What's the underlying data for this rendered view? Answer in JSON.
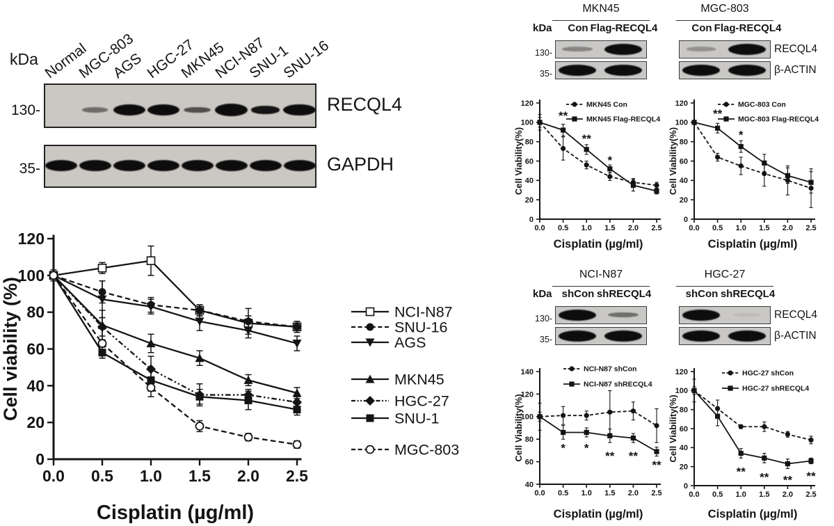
{
  "figure": {
    "background": "#ffffff",
    "ink": "#141414"
  },
  "main_blot": {
    "kda_label": "kDa",
    "lanes": [
      "Normal",
      "MGC-803",
      "AGS",
      "HGC-27",
      "MKN45",
      "NCI-N87",
      "SNU-1",
      "SNU-16"
    ],
    "rows": [
      {
        "marker": "130-",
        "label": "RECQL4",
        "intensities": [
          0,
          0.3,
          1,
          1,
          0.4,
          1.15,
          0.6,
          1.05
        ]
      },
      {
        "marker": "35-",
        "label": "GAPDH",
        "intensities": [
          1,
          1,
          1,
          1,
          1,
          1,
          1,
          1
        ]
      }
    ]
  },
  "mini_blots": [
    {
      "id": "mkn45",
      "title": "MKN45",
      "kda_label": "kDa",
      "lanes": [
        "Con",
        "Flag-RECQL4"
      ],
      "rows": [
        {
          "marker": "130-",
          "side_label": "",
          "intensities": [
            0.22,
            1
          ]
        },
        {
          "marker": "35-",
          "side_label": "",
          "intensities": [
            1,
            1
          ]
        }
      ]
    },
    {
      "id": "mgc803",
      "title": "MGC-803",
      "kda_label": "",
      "lanes": [
        "Con",
        "Flag-RECQL4"
      ],
      "rows": [
        {
          "marker": "",
          "side_label": "RECQL4",
          "intensities": [
            0.18,
            1
          ]
        },
        {
          "marker": "",
          "side_label": "β-ACTIN",
          "intensities": [
            1,
            1
          ]
        }
      ]
    },
    {
      "id": "ncin87",
      "title": "NCI-N87",
      "kda_label": "kDa",
      "lanes": [
        "shCon",
        "shRECQL4"
      ],
      "rows": [
        {
          "marker": "130-",
          "side_label": "",
          "intensities": [
            1,
            0.3
          ]
        },
        {
          "marker": "35-",
          "side_label": "",
          "intensities": [
            1,
            1
          ]
        }
      ]
    },
    {
      "id": "hgc27",
      "title": "HGC-27",
      "kda_label": "",
      "lanes": [
        "shCon",
        "shRECQL4"
      ],
      "rows": [
        {
          "marker": "",
          "side_label": "RECQL4",
          "intensities": [
            1,
            0.04
          ]
        },
        {
          "marker": "",
          "side_label": "β-ACTIN",
          "intensities": [
            1,
            1
          ]
        }
      ]
    }
  ],
  "chart_data": [
    {
      "id": "main",
      "type": "line",
      "title": "",
      "xlabel": "Cisplatin (µg/ml)",
      "ylabel": "Cell viability (%)",
      "x": [
        0,
        0.5,
        1,
        1.5,
        2,
        2.5
      ],
      "xticks": [
        "0.0",
        "0.5",
        "1.0",
        "1.5",
        "2.0",
        "2.5"
      ],
      "yticks": [
        0,
        20,
        40,
        60,
        80,
        100,
        120
      ],
      "xlim": [
        0,
        2.5
      ],
      "ylim": [
        0,
        120
      ],
      "grid": false,
      "legend_position": "right-outside",
      "series": [
        {
          "name": "NCI-N87",
          "marker": "osquare",
          "line": "solid",
          "values": [
            100,
            104,
            108,
            81,
            74,
            72
          ],
          "errors": [
            3,
            3,
            8,
            3,
            4,
            3
          ]
        },
        {
          "name": "SNU-16",
          "marker": "fcircle",
          "line": "dashed",
          "values": [
            100,
            91,
            84,
            81,
            75,
            72
          ],
          "errors": [
            2,
            6,
            4,
            3,
            7,
            3
          ]
        },
        {
          "name": "AGS",
          "marker": "ftridown",
          "line": "solid",
          "values": [
            100,
            87,
            83,
            75,
            70,
            63
          ],
          "errors": [
            2,
            10,
            4,
            5,
            4,
            4
          ]
        },
        {
          "name": "MKN45",
          "marker": "ftriup",
          "line": "solid",
          "values": [
            100,
            73,
            63,
            55,
            43,
            36
          ],
          "errors": [
            2,
            8,
            5,
            4,
            3,
            3
          ]
        },
        {
          "name": "HGC-27",
          "marker": "fdiamond",
          "line": "dashdot",
          "values": [
            100,
            72,
            49,
            35,
            35,
            31
          ],
          "errors": [
            2,
            5,
            7,
            6,
            3,
            3
          ]
        },
        {
          "name": "SNU-1",
          "marker": "fsquare",
          "line": "solid",
          "values": [
            100,
            58,
            43,
            34,
            32,
            27
          ],
          "errors": [
            2,
            3,
            6,
            4,
            5,
            3
          ]
        },
        {
          "name": "MGC-803",
          "marker": "ocircle",
          "line": "dashed",
          "values": [
            100,
            63,
            39,
            18,
            12,
            8
          ],
          "errors": [
            2,
            8,
            5,
            3,
            2,
            2
          ]
        }
      ],
      "annotations": []
    },
    {
      "id": "mkn45",
      "type": "line",
      "title": "",
      "xlabel": "Cisplatin (µg/ml)",
      "ylabel": "Cell Viability(%)",
      "x": [
        0,
        0.5,
        1,
        1.5,
        2,
        2.5
      ],
      "xticks": [
        "0.0",
        "0.5",
        "1.0",
        "1.5",
        "2.0",
        "2.5"
      ],
      "yticks": [
        0,
        20,
        40,
        60,
        80,
        100,
        120
      ],
      "xlim": [
        0,
        2.5
      ],
      "ylim": [
        0,
        120
      ],
      "grid": false,
      "legend_position": "inside-top",
      "series": [
        {
          "name": "MKN45 Con",
          "marker": "fcircle",
          "line": "dashed",
          "values": [
            100,
            73,
            56,
            44,
            38,
            35
          ],
          "errors": [
            8,
            12,
            4,
            4,
            4,
            3
          ]
        },
        {
          "name": "MKN45 Flag-RECQL4",
          "marker": "fsquare",
          "line": "solid",
          "values": [
            100,
            92,
            72,
            52,
            35,
            29
          ],
          "errors": [
            5,
            6,
            5,
            4,
            6,
            3
          ]
        }
      ],
      "annotations": [
        {
          "x": 0.5,
          "y": 108,
          "label": "**"
        },
        {
          "x": 1.0,
          "y": 84,
          "label": "**"
        },
        {
          "x": 1.5,
          "y": 62,
          "label": "*"
        }
      ]
    },
    {
      "id": "mgc803",
      "type": "line",
      "title": "",
      "xlabel": "Cisplatin (µg/ml)",
      "ylabel": "Cell Viability(%)",
      "x": [
        0,
        0.5,
        1,
        1.5,
        2,
        2.5
      ],
      "xticks": [
        "0.0",
        "0.5",
        "1.0",
        "1.5",
        "2.0",
        "2.5"
      ],
      "yticks": [
        0,
        20,
        40,
        60,
        80,
        100,
        120
      ],
      "xlim": [
        0,
        2.5
      ],
      "ylim": [
        0,
        120
      ],
      "grid": false,
      "legend_position": "inside-top",
      "series": [
        {
          "name": "MGC-803 Con",
          "marker": "fcircle",
          "line": "dashed",
          "values": [
            100,
            64,
            55,
            47,
            40,
            32
          ],
          "errors": [
            2,
            4,
            9,
            13,
            15,
            20
          ]
        },
        {
          "name": "MGC-803 Flag-RECQL4",
          "marker": "fsquare",
          "line": "solid",
          "values": [
            100,
            94,
            75,
            58,
            45,
            38
          ],
          "errors": [
            2,
            5,
            6,
            9,
            8,
            11
          ]
        }
      ],
      "annotations": [
        {
          "x": 0.5,
          "y": 110,
          "label": "**"
        },
        {
          "x": 1.0,
          "y": 88,
          "label": "*"
        }
      ]
    },
    {
      "id": "ncin87",
      "type": "line",
      "title": "",
      "xlabel": "Cisplatin (µg/ml)",
      "ylabel": "Cell Viability(%)",
      "x": [
        0,
        0.5,
        1,
        1.5,
        2,
        2.5
      ],
      "xticks": [
        "0.0",
        "0.5",
        "1.0",
        "1.5",
        "2.0",
        "2.5"
      ],
      "yticks": [
        40,
        60,
        80,
        100,
        120,
        140
      ],
      "xlim": [
        0,
        2.5
      ],
      "ylim": [
        40,
        140
      ],
      "grid": false,
      "legend_position": "inside-top",
      "series": [
        {
          "name": "NCI-N87 shCon",
          "marker": "fcircle",
          "line": "dashed",
          "values": [
            100,
            101,
            101,
            104,
            105,
            92
          ],
          "errors": [
            12,
            8,
            4,
            19,
            8,
            15
          ]
        },
        {
          "name": "NCI-N87 shRECQL4",
          "marker": "fsquare",
          "line": "solid",
          "values": [
            100,
            86,
            86,
            83,
            81,
            69
          ],
          "errors": [
            4,
            6,
            4,
            6,
            4,
            4
          ]
        }
      ],
      "annotations": [
        {
          "x": 0.5,
          "y": 73,
          "label": "*"
        },
        {
          "x": 1.0,
          "y": 73,
          "label": "*"
        },
        {
          "x": 1.5,
          "y": 66,
          "label": "**"
        },
        {
          "x": 2.0,
          "y": 66,
          "label": "**"
        },
        {
          "x": 2.5,
          "y": 58,
          "label": "**"
        }
      ]
    },
    {
      "id": "hgc27",
      "type": "line",
      "title": "",
      "xlabel": "Cisplatin (µg/ml)",
      "ylabel": "Cell Viability(%)",
      "x": [
        0,
        0.5,
        1,
        1.5,
        2,
        2.5
      ],
      "xticks": [
        "0.0",
        "0.5",
        "1.0",
        "1.5",
        "2.0",
        "2.5"
      ],
      "yticks": [
        0,
        20,
        40,
        60,
        80,
        100,
        120
      ],
      "xlim": [
        0,
        2.5
      ],
      "ylim": [
        0,
        120
      ],
      "grid": false,
      "legend_position": "inside-top",
      "series": [
        {
          "name": "HGC-27 shCon",
          "marker": "fcircle",
          "line": "dashed",
          "values": [
            100,
            81,
            62,
            62,
            54,
            48
          ],
          "errors": [
            12,
            9,
            2,
            5,
            3,
            4
          ]
        },
        {
          "name": "HGC-27 shRECQL4",
          "marker": "fsquare",
          "line": "solid",
          "values": [
            100,
            73,
            34,
            29,
            23,
            26
          ],
          "errors": [
            4,
            10,
            5,
            5,
            5,
            3
          ]
        }
      ],
      "annotations": [
        {
          "x": 1.0,
          "y": 16,
          "label": "**"
        },
        {
          "x": 1.5,
          "y": 10,
          "label": "**"
        },
        {
          "x": 2.0,
          "y": 7,
          "label": "**"
        },
        {
          "x": 2.5,
          "y": 11,
          "label": "**"
        }
      ]
    }
  ]
}
